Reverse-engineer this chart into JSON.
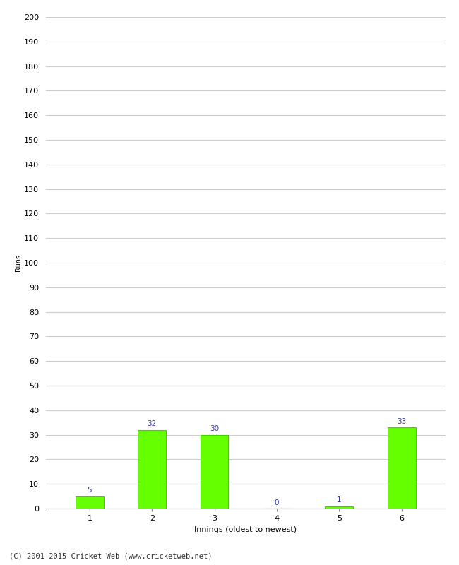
{
  "categories": [
    "1",
    "2",
    "3",
    "4",
    "5",
    "6"
  ],
  "values": [
    5,
    32,
    30,
    0,
    1,
    33
  ],
  "bar_color": "#66ff00",
  "bar_edge_color": "#44cc00",
  "label_color": "#3333aa",
  "xlabel": "Innings (oldest to newest)",
  "ylabel": "Runs",
  "ylim": [
    0,
    200
  ],
  "yticks": [
    0,
    10,
    20,
    30,
    40,
    50,
    60,
    70,
    80,
    90,
    100,
    110,
    120,
    130,
    140,
    150,
    160,
    170,
    180,
    190,
    200
  ],
  "footnote": "(C) 2001-2015 Cricket Web (www.cricketweb.net)",
  "background_color": "#ffffff",
  "grid_color": "#cccccc",
  "label_fontsize": 7.5,
  "tick_fontsize": 8,
  "xlabel_fontsize": 8,
  "ylabel_fontsize": 7,
  "footnote_fontsize": 7.5,
  "bar_width": 0.45
}
